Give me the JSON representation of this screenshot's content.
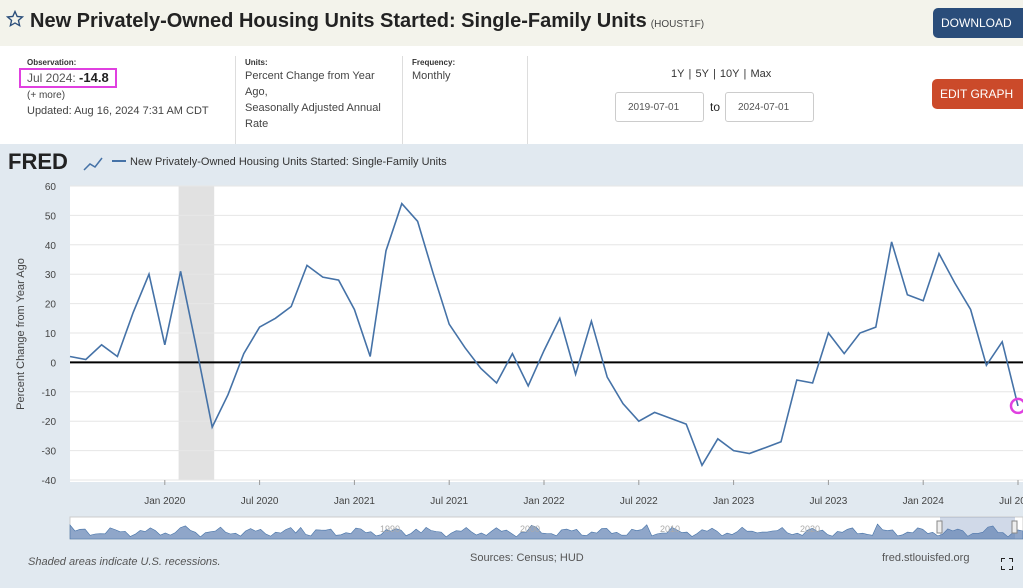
{
  "header": {
    "title": "New Privately-Owned Housing Units Started: Single-Family Units",
    "series_id": "(HOUST1F)",
    "download_label": "DOWNLOAD"
  },
  "meta": {
    "observation_label": "Observation:",
    "observation_date": "Jul 2024:",
    "observation_value": "-14.8",
    "more_link": "(+ more)",
    "updated": "Updated: Aug 16, 2024 7:31 AM CDT",
    "units_label": "Units:",
    "units_lines": [
      "Percent Change from Year",
      "Ago,",
      "Seasonally Adjusted Annual",
      "Rate"
    ],
    "frequency_label": "Frequency:",
    "frequency_value": "Monthly",
    "range_links": [
      "1Y",
      "5Y",
      "10Y",
      "Max"
    ],
    "start_date": "2019-07-01",
    "to_label": "to",
    "end_date": "2024-07-01",
    "edit_label": "EDIT GRAPH"
  },
  "chart_data": {
    "type": "line",
    "logo": "FRED",
    "legend": [
      "New Privately-Owned Housing Units Started: Single-Family Units"
    ],
    "ylabel": "Percent Change from Year Ago",
    "ylim": [
      -40,
      60
    ],
    "yticks": [
      60,
      50,
      40,
      30,
      20,
      10,
      0,
      -10,
      -20,
      -30,
      -40
    ],
    "xticks": [
      "Jan 2020",
      "Jul 2020",
      "Jan 2021",
      "Jul 2021",
      "Jan 2022",
      "Jul 2022",
      "Jan 2023",
      "Jul 2023",
      "Jan 2024",
      "Jul 2024"
    ],
    "x_start": "2019-07",
    "x_end": "2024-07",
    "recession": [
      "2020-02",
      "2020-04"
    ],
    "series": [
      {
        "values": [
          2,
          1,
          6,
          2,
          17,
          30,
          6,
          31,
          5,
          -22,
          -11,
          3,
          12,
          15,
          19,
          33,
          29,
          28,
          18,
          2,
          38,
          54,
          48,
          30,
          13,
          5,
          -2,
          -7,
          3,
          -8,
          4,
          15,
          -4,
          14,
          -5,
          -14,
          -20,
          -17,
          -19,
          -21,
          -35,
          -26,
          -30,
          -31,
          -29,
          -27,
          -6,
          -7,
          10,
          3,
          10,
          12,
          41,
          23,
          21,
          37,
          27,
          18,
          -1,
          7,
          -14.8
        ],
        "color": "#4572a7"
      }
    ],
    "overview_labels": [
      "1990",
      "2000",
      "2010",
      "2020"
    ]
  },
  "footer": {
    "recession_note": "Shaded areas indicate U.S. recessions.",
    "sources": "Sources: Census; HUD",
    "site": "fred.stlouisfed.org"
  }
}
